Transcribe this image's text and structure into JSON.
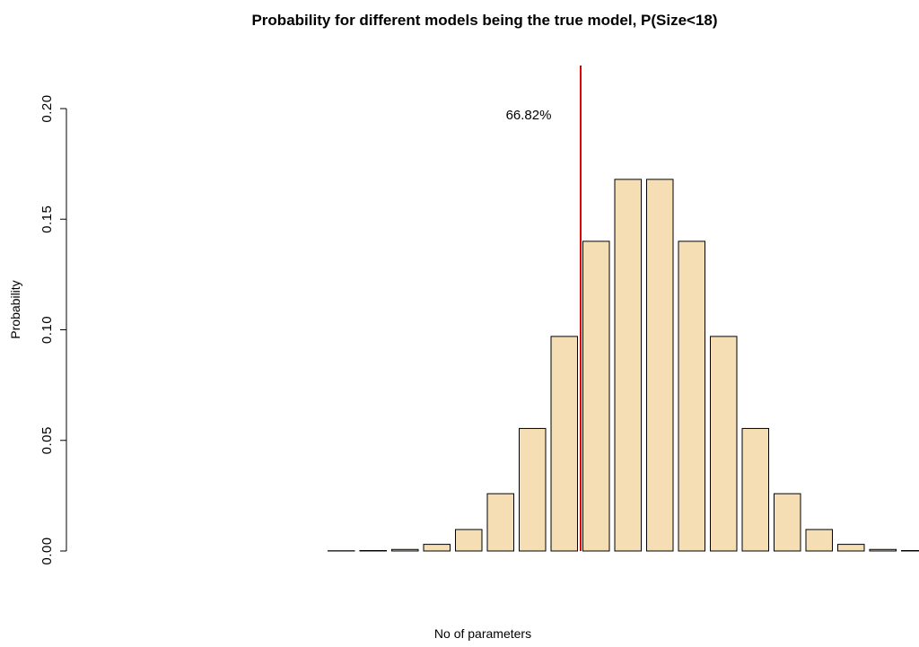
{
  "chart_data": {
    "type": "bar",
    "title": "Probability for different models being the true model, P(Size<18)",
    "xlabel": "No of parameters",
    "ylabel": "Probability",
    "ylim": [
      0,
      0.2
    ],
    "yticks": [
      "0.00",
      "0.05",
      "0.10",
      "0.15",
      "0.20"
    ],
    "bar_fill": "#f5deb3",
    "bar_stroke": "#000000",
    "line_color": "#dd0000",
    "grid": false,
    "values": [
      0.0,
      0.0,
      0.0,
      0.0,
      0.0,
      0.0,
      0.0,
      0.0001,
      0.0002,
      0.0007,
      0.003,
      0.0097,
      0.0259,
      0.0554,
      0.097,
      0.14,
      0.168,
      0.168,
      0.14,
      0.097,
      0.0554,
      0.0259,
      0.0097,
      0.003,
      0.0007,
      0.0002
    ],
    "vline_after_index": 15,
    "annotation": {
      "text": "66.82%"
    }
  }
}
